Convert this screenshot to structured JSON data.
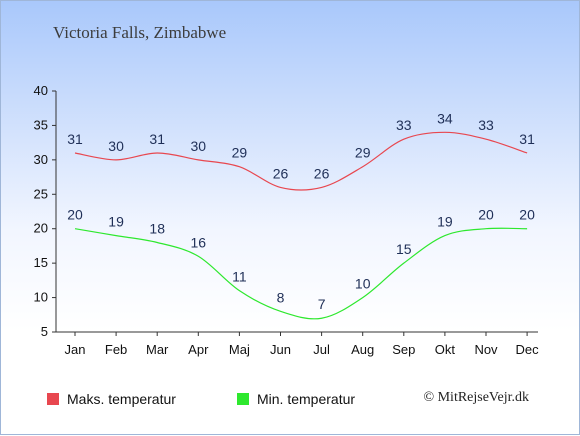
{
  "title": "Victoria Falls, Zimbabwe",
  "credit": "© MitRejseVejr.dk",
  "chart_data": {
    "type": "line",
    "categories": [
      "Jan",
      "Feb",
      "Mar",
      "Apr",
      "Maj",
      "Jun",
      "Jul",
      "Aug",
      "Sep",
      "Okt",
      "Nov",
      "Dec"
    ],
    "series": [
      {
        "name": "Maks. temperatur",
        "color": "#e8474f",
        "values": [
          31,
          30,
          31,
          30,
          29,
          26,
          26,
          29,
          33,
          34,
          33,
          31
        ]
      },
      {
        "name": "Min. temperatur",
        "color": "#2ee82e",
        "values": [
          20,
          19,
          18,
          16,
          11,
          8,
          7,
          10,
          15,
          19,
          20,
          20
        ]
      }
    ],
    "yticks": [
      5,
      10,
      15,
      20,
      25,
      30,
      35,
      40
    ],
    "ylim": [
      5,
      40
    ],
    "grid": false,
    "legend": "bottom-left"
  }
}
